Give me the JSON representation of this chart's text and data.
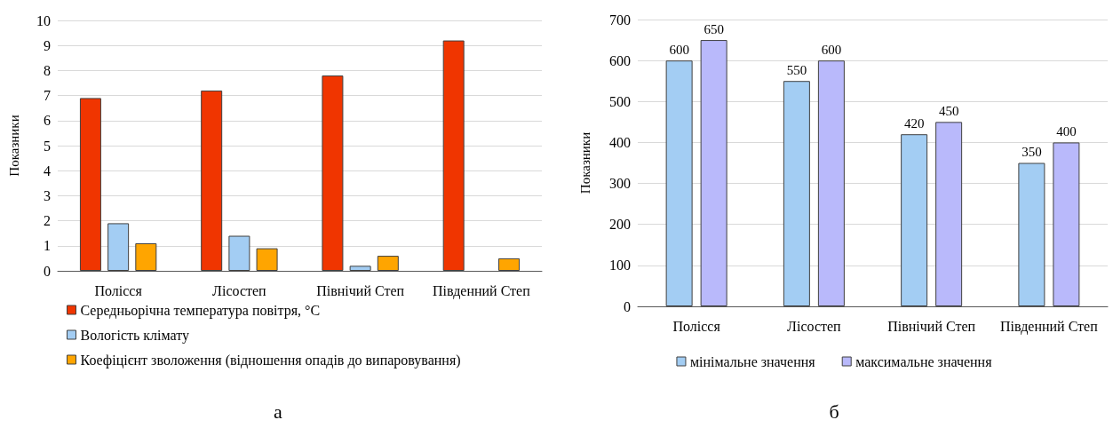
{
  "chart_data": [
    {
      "type": "bar",
      "ylabel": "Показники",
      "categories": [
        "Полісся",
        "Лісостеп",
        "Північий Степ",
        "Південний Степ"
      ],
      "series": [
        {
          "name": "Середньорічна температура повітря, °C",
          "color": "#f03500",
          "values": [
            6.9,
            7.2,
            7.8,
            9.2
          ]
        },
        {
          "name": "Вологість клімату",
          "color": "#a3cdf3",
          "values": [
            1.9,
            1.4,
            0.2,
            null
          ]
        },
        {
          "name": "Коефіцієнт зволоження (відношення опадів до випаровування)",
          "color": "#ffa500",
          "values": [
            1.1,
            0.9,
            0.6,
            0.5
          ]
        }
      ],
      "ylim": [
        0,
        10
      ],
      "yticks": [
        0,
        1,
        2,
        3,
        4,
        5,
        6,
        7,
        8,
        9,
        10
      ],
      "grid": "y",
      "legend": "bottom left",
      "annotations": [
        "а"
      ]
    },
    {
      "type": "bar",
      "ylabel": "Показники",
      "categories": [
        "Полісся",
        "Лісостеп",
        "Північий Степ",
        "Південний Степ"
      ],
      "series": [
        {
          "name": "мінімальне значення",
          "color": "#a3cdf3",
          "values": [
            600,
            550,
            420,
            350
          ]
        },
        {
          "name": "максимальне значення",
          "color": "#b9b9fb",
          "values": [
            650,
            600,
            450,
            400
          ]
        }
      ],
      "ylim": [
        0,
        700
      ],
      "yticks": [
        0,
        100,
        200,
        300,
        400,
        500,
        600,
        700
      ],
      "grid": "y",
      "legend": "bottom",
      "data_labels": true,
      "annotations": [
        "б"
      ]
    }
  ]
}
